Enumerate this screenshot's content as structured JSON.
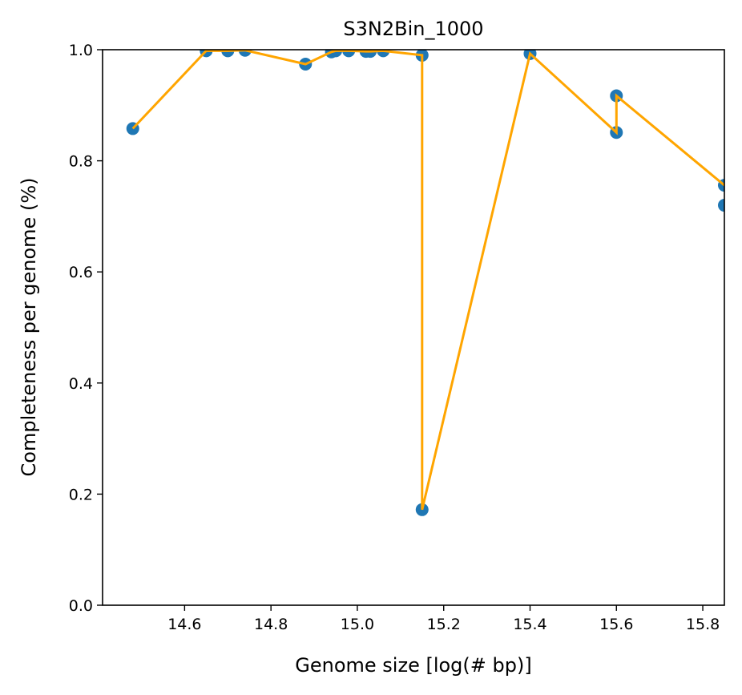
{
  "chart_data": {
    "type": "scatter",
    "title": "S3N2Bin_1000",
    "xlabel": "Genome size [log(# bp)]",
    "ylabel": "Completeness per genome (%)",
    "xlim": [
      14.41,
      15.85
    ],
    "ylim": [
      0.0,
      1.0
    ],
    "xticks": [
      14.6,
      14.8,
      15.0,
      15.2,
      15.4,
      15.6,
      15.8
    ],
    "yticks": [
      0.0,
      0.2,
      0.4,
      0.6,
      0.8,
      1.0
    ],
    "xtick_labels": [
      "14.6",
      "14.8",
      "15.0",
      "15.2",
      "15.4",
      "15.6",
      "15.8"
    ],
    "ytick_labels": [
      "0.0",
      "0.2",
      "0.4",
      "0.6",
      "0.8",
      "1.0"
    ],
    "grid": false,
    "series": [
      {
        "kind": "scatter",
        "color": "#1f77b4",
        "x": [
          14.48,
          14.65,
          14.7,
          14.74,
          14.88,
          14.94,
          14.95,
          14.98,
          15.02,
          15.03,
          15.06,
          15.15,
          15.15,
          15.4,
          15.6,
          15.6,
          15.85,
          15.85
        ],
        "y": [
          0.858,
          0.998,
          0.998,
          0.999,
          0.974,
          0.996,
          0.998,
          0.998,
          0.997,
          0.997,
          0.998,
          0.99,
          0.172,
          0.993,
          0.851,
          0.917,
          0.756,
          0.72
        ]
      },
      {
        "kind": "line",
        "color": "#ffa500",
        "x": [
          14.48,
          14.65,
          14.7,
          14.74,
          14.88,
          14.94,
          14.95,
          14.98,
          15.02,
          15.03,
          15.06,
          15.15,
          15.15,
          15.4,
          15.6,
          15.6,
          15.85
        ],
        "y": [
          0.858,
          0.998,
          0.998,
          0.999,
          0.974,
          0.996,
          0.998,
          0.998,
          0.997,
          0.997,
          0.998,
          0.99,
          0.172,
          0.993,
          0.851,
          0.917,
          0.756
        ]
      }
    ]
  }
}
